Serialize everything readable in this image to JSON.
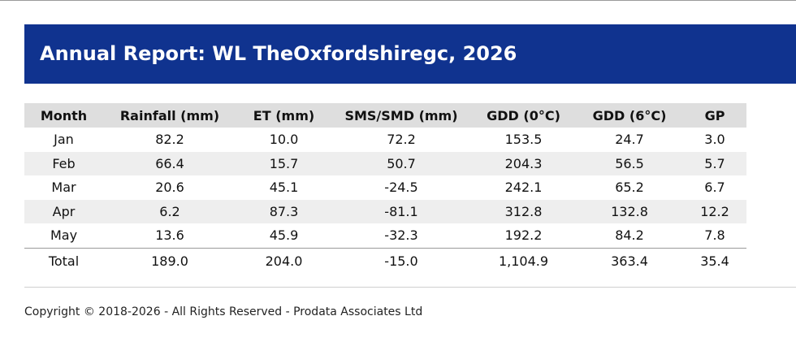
{
  "report": {
    "title": "Annual Report: WL TheOxfordshiregc, 2026"
  },
  "table": {
    "headers": [
      "Month",
      "Rainfall (mm)",
      "ET (mm)",
      "SMS/SMD (mm)",
      "GDD (0°C)",
      "GDD (6°C)",
      "GP"
    ],
    "rows": [
      [
        "Jan",
        "82.2",
        "10.0",
        "72.2",
        "153.5",
        "24.7",
        "3.0"
      ],
      [
        "Feb",
        "66.4",
        "15.7",
        "50.7",
        "204.3",
        "56.5",
        "5.7"
      ],
      [
        "Mar",
        "20.6",
        "45.1",
        "-24.5",
        "242.1",
        "65.2",
        "6.7"
      ],
      [
        "Apr",
        "6.2",
        "87.3",
        "-81.1",
        "312.8",
        "132.8",
        "12.2"
      ],
      [
        "May",
        "13.6",
        "45.9",
        "-32.3",
        "192.2",
        "84.2",
        "7.8"
      ]
    ],
    "total": [
      "Total",
      "189.0",
      "204.0",
      "-15.0",
      "1,104.9",
      "363.4",
      "35.4"
    ]
  },
  "footer": {
    "copyright": "Copyright © 2018-2026 - All Rights Reserved - Prodata Associates Ltd"
  },
  "colors": {
    "banner_background": "#10338f",
    "banner_text": "#ffffff",
    "header_row": "#dedede",
    "shaded_row": "#eeeeee"
  }
}
